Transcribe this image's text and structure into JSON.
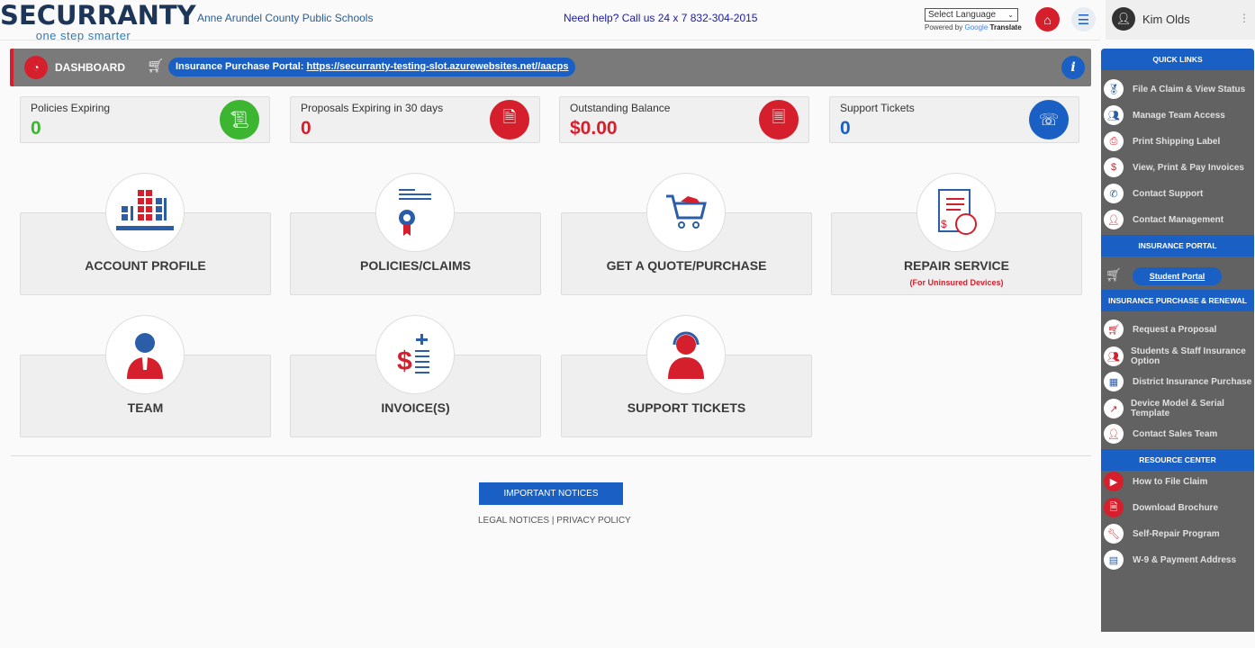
{
  "header": {
    "brand": "SECURRANTY",
    "tagline": "one step smarter",
    "school": "Anne Arundel County Public Schools",
    "help": "Need help? Call us 24 x 7 832-304-2015",
    "language_select": "Select Language",
    "powered_by": "Powered by",
    "google": "Google",
    "translate": "Translate",
    "user_name": "Kim Olds"
  },
  "dashbar": {
    "title": "DASHBOARD",
    "portal_label": "Insurance Purchase Portal:",
    "portal_url": "https://securranty-testing-slot.azurewebsites.net//aacps"
  },
  "stats": [
    {
      "label": "Policies Expiring",
      "value": "0",
      "color": "#3cb531",
      "icon": "certificate-icon"
    },
    {
      "label": "Proposals Expiring in 30 days",
      "value": "0",
      "color": "#d61f2c",
      "icon": "proposal-icon"
    },
    {
      "label": "Outstanding Balance",
      "value": "$0.00",
      "color": "#d61f2c",
      "icon": "invoice-icon"
    },
    {
      "label": "Support Tickets",
      "value": "0",
      "color": "#1a5fc4",
      "icon": "support-agent-icon"
    }
  ],
  "tiles": [
    {
      "label": "ACCOUNT PROFILE",
      "icon": "building-icon"
    },
    {
      "label": "POLICIES/CLAIMS",
      "icon": "award-icon"
    },
    {
      "label": "GET A QUOTE/PURCHASE",
      "icon": "cart-icon"
    },
    {
      "label": "REPAIR SERVICE",
      "sub": "(For Uninsured Devices)",
      "icon": "repair-icon"
    },
    {
      "label": "TEAM",
      "icon": "person-icon"
    },
    {
      "label": "INVOICE(S)",
      "icon": "invoice-icon"
    },
    {
      "label": "SUPPORT TICKETS",
      "icon": "headset-icon"
    }
  ],
  "footer": {
    "notices": "IMPORTANT NOTICES",
    "legal": "LEGAL NOTICES",
    "sep": "|",
    "privacy": "PRIVACY POLICY"
  },
  "sidebar": {
    "quick_links": "QUICK LINKS",
    "quick": [
      "File A Claim & View Status",
      "Manage Team Access",
      "Print Shipping Label",
      "View, Print & Pay Invoices",
      "Contact Support",
      "Contact Management"
    ],
    "insurance_portal": "INSURANCE PORTAL",
    "student_portal": "Student Portal",
    "purchase_renewal": "INSURANCE PURCHASE & RENEWAL",
    "purchase": [
      "Request a Proposal",
      "Students & Staff Insurance Option",
      "District Insurance Purchase",
      "Device Model & Serial Template",
      "Contact Sales Team"
    ],
    "resource_center": "RESOURCE CENTER",
    "resources": [
      "How to File Claim",
      "Download Brochure",
      "Self-Repair Program",
      "W-9 & Payment Address"
    ]
  }
}
